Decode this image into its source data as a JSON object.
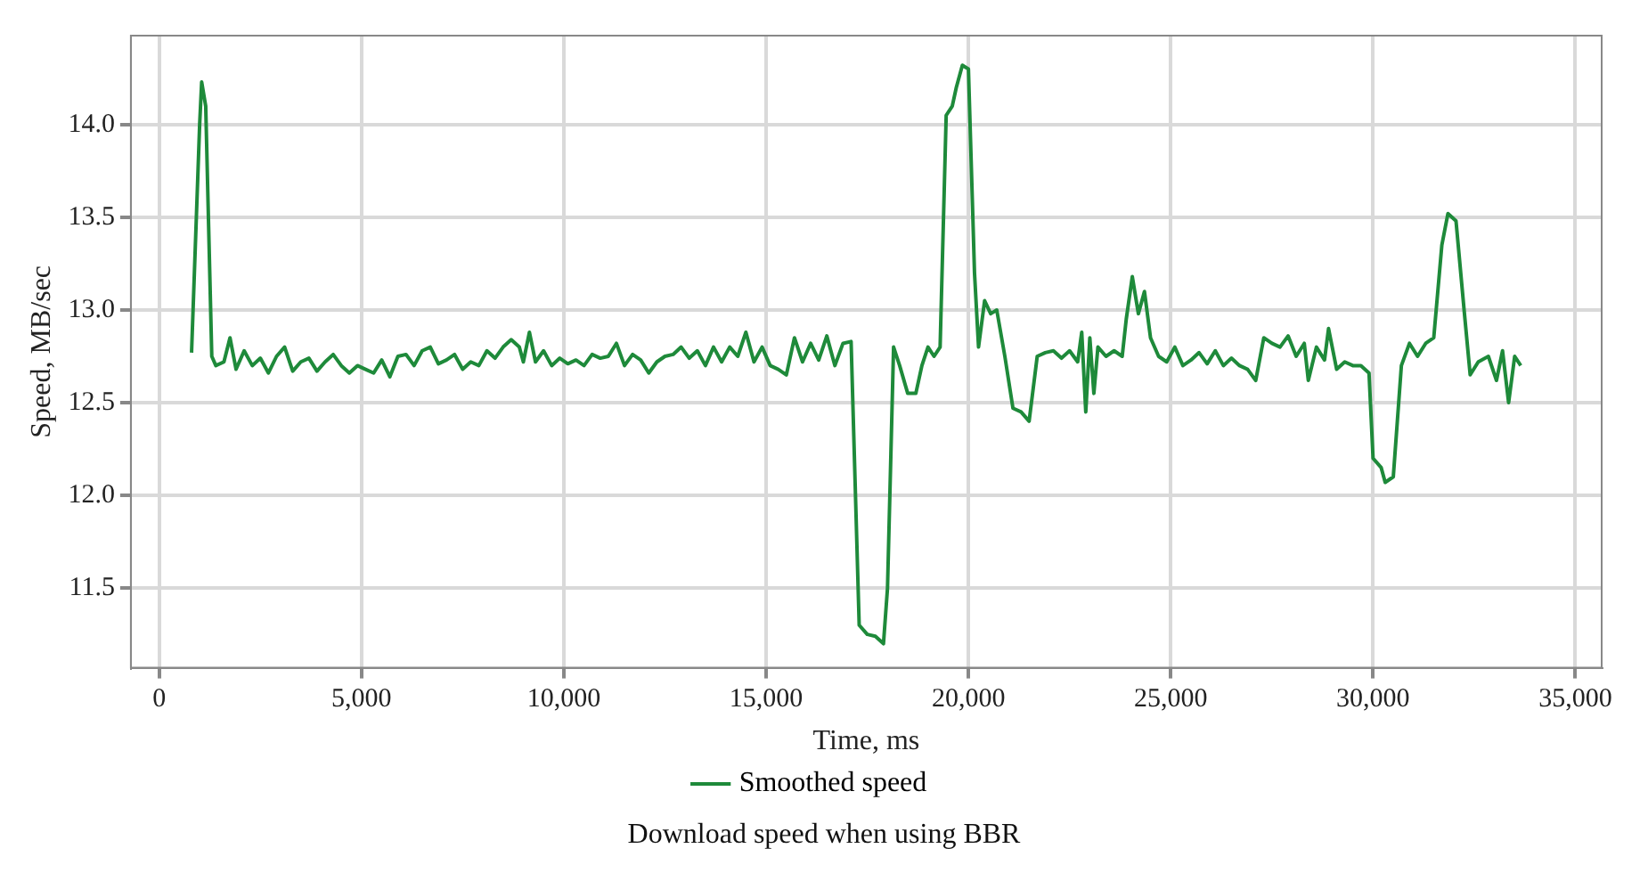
{
  "chart_data": {
    "type": "line",
    "xlabel": "Time, ms",
    "ylabel": "Speed, MB/sec",
    "annotations": [
      "Download speed when using BBR"
    ],
    "legend": "bottom",
    "grid": true,
    "marker": "none",
    "line_style": "solid",
    "xlim": [
      -700,
      35650
    ],
    "ylim": [
      11.07,
      14.48
    ],
    "xticks": [
      0,
      {
        "value": 5000,
        "label": "5,000"
      },
      {
        "value": 10000,
        "label": "10,000"
      },
      {
        "value": 15000,
        "label": "15,000"
      },
      {
        "value": 20000,
        "label": "20,000"
      },
      {
        "value": 25000,
        "label": "25,000"
      },
      {
        "value": 30000,
        "label": "30,000"
      },
      {
        "value": 35000,
        "label": "35,000"
      }
    ],
    "yticks": [
      11.5,
      {
        "value": 12,
        "label": "12.0"
      },
      12.5,
      {
        "value": 13,
        "label": "13.0"
      },
      13.5,
      {
        "value": 14,
        "label": "14.0"
      }
    ],
    "x": [
      800,
      1000,
      1050,
      1150,
      1300,
      1400,
      1600,
      1750,
      1900,
      2100,
      2300,
      2500,
      2700,
      2900,
      3100,
      3300,
      3500,
      3700,
      3900,
      4100,
      4300,
      4500,
      4700,
      4900,
      5100,
      5300,
      5500,
      5700,
      5900,
      6100,
      6300,
      6500,
      6700,
      6900,
      7100,
      7300,
      7500,
      7700,
      7900,
      8100,
      8300,
      8500,
      8700,
      8900,
      9000,
      9150,
      9300,
      9500,
      9700,
      9900,
      10100,
      10300,
      10500,
      10700,
      10900,
      11100,
      11300,
      11500,
      11700,
      11900,
      12100,
      12300,
      12500,
      12700,
      12900,
      13100,
      13300,
      13500,
      13700,
      13900,
      14100,
      14300,
      14500,
      14700,
      14900,
      15100,
      15300,
      15500,
      15700,
      15900,
      16100,
      16300,
      16500,
      16700,
      16900,
      17100,
      17300,
      17500,
      17700,
      17900,
      18000,
      18150,
      18300,
      18500,
      18700,
      18850,
      19000,
      19150,
      19300,
      19450,
      19600,
      19700,
      19850,
      20000,
      20150,
      20250,
      20400,
      20550,
      20700,
      20900,
      21100,
      21300,
      21500,
      21700,
      21900,
      22100,
      22300,
      22500,
      22700,
      22800,
      22900,
      23000,
      23100,
      23200,
      23400,
      23600,
      23800,
      23900,
      24050,
      24200,
      24350,
      24500,
      24700,
      24900,
      25100,
      25300,
      25500,
      25700,
      25900,
      26100,
      26300,
      26500,
      26700,
      26900,
      27100,
      27300,
      27500,
      27700,
      27900,
      28100,
      28300,
      28400,
      28600,
      28800,
      28900,
      29100,
      29300,
      29500,
      29700,
      29900,
      30000,
      30200,
      30300,
      30500,
      30700,
      30900,
      31100,
      31300,
      31500,
      31700,
      31850,
      32050,
      32250,
      32400,
      32600,
      32850,
      33050,
      33200,
      33350,
      33500,
      33650
    ],
    "series": [
      {
        "name": "Smoothed speed",
        "color": "#1e8a3a",
        "values": [
          12.77,
          14.0,
          14.23,
          14.1,
          12.75,
          12.7,
          12.72,
          12.85,
          12.68,
          12.78,
          12.7,
          12.74,
          12.66,
          12.75,
          12.8,
          12.67,
          12.72,
          12.74,
          12.67,
          12.72,
          12.76,
          12.7,
          12.66,
          12.7,
          12.68,
          12.66,
          12.73,
          12.64,
          12.75,
          12.76,
          12.7,
          12.78,
          12.8,
          12.71,
          12.73,
          12.76,
          12.68,
          12.72,
          12.7,
          12.78,
          12.74,
          12.8,
          12.84,
          12.8,
          12.72,
          12.88,
          12.72,
          12.78,
          12.7,
          12.74,
          12.71,
          12.73,
          12.7,
          12.76,
          12.74,
          12.75,
          12.82,
          12.7,
          12.76,
          12.73,
          12.66,
          12.72,
          12.75,
          12.76,
          12.8,
          12.74,
          12.78,
          12.7,
          12.8,
          12.72,
          12.8,
          12.75,
          12.88,
          12.72,
          12.8,
          12.7,
          12.68,
          12.65,
          12.85,
          12.72,
          12.82,
          12.73,
          12.86,
          12.7,
          12.82,
          12.83,
          11.3,
          11.25,
          11.24,
          11.2,
          11.5,
          12.8,
          12.7,
          12.55,
          12.55,
          12.7,
          12.8,
          12.75,
          12.8,
          14.05,
          14.1,
          14.2,
          14.32,
          14.3,
          13.2,
          12.8,
          13.05,
          12.98,
          13.0,
          12.75,
          12.47,
          12.45,
          12.4,
          12.75,
          12.77,
          12.78,
          12.74,
          12.78,
          12.72,
          12.88,
          12.45,
          12.85,
          12.55,
          12.8,
          12.75,
          12.78,
          12.75,
          12.95,
          13.18,
          12.98,
          13.1,
          12.85,
          12.75,
          12.72,
          12.8,
          12.7,
          12.73,
          12.77,
          12.71,
          12.78,
          12.7,
          12.74,
          12.7,
          12.68,
          12.62,
          12.85,
          12.82,
          12.8,
          12.86,
          12.75,
          12.82,
          12.62,
          12.8,
          12.73,
          12.9,
          12.68,
          12.72,
          12.7,
          12.7,
          12.66,
          12.2,
          12.15,
          12.07,
          12.1,
          12.7,
          12.82,
          12.75,
          12.82,
          12.85,
          13.35,
          13.52,
          13.48,
          13.0,
          12.65,
          12.72,
          12.75,
          12.62,
          12.78,
          12.5,
          12.75,
          12.7
        ]
      }
    ]
  }
}
